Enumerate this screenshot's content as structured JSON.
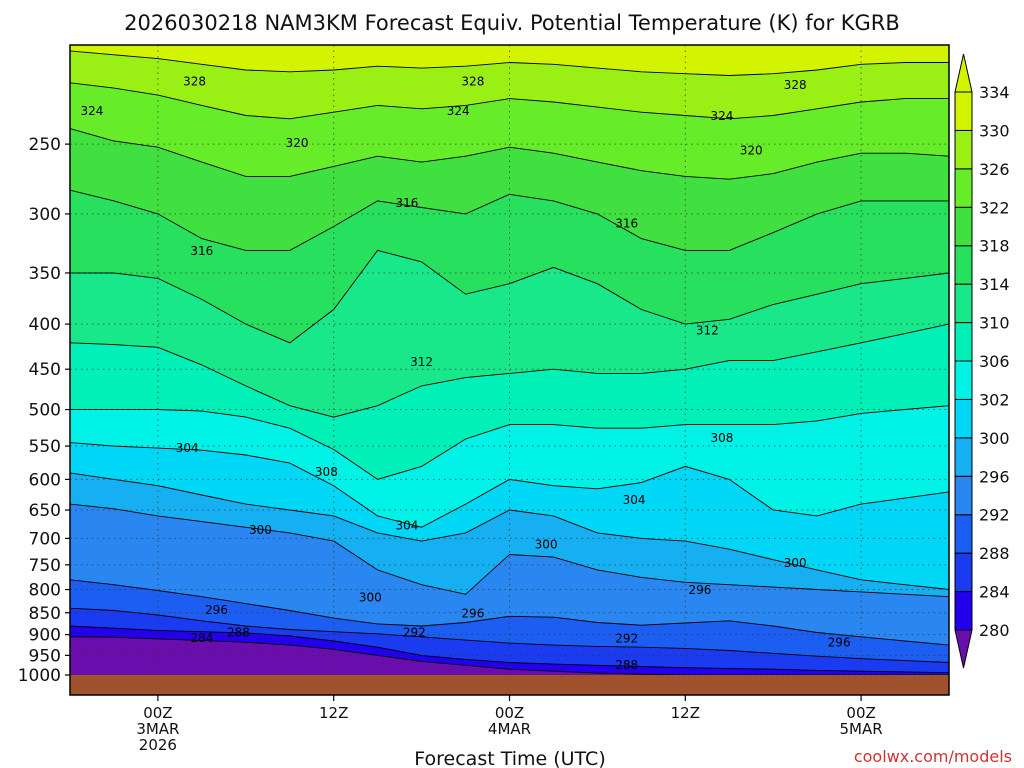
{
  "title": "2026030218 NAM3KM Forecast Equiv. Potential Temperature (K) for KGRB",
  "credit": "coolwx.com/models",
  "chart_data": {
    "type": "heatmap",
    "title": "2026030218 NAM3KM Forecast Equiv. Potential Temperature (K) for KGRB",
    "xlabel": "Forecast Time (UTC)",
    "ylabel": "",
    "y_axis": {
      "unit": "hPa",
      "scale": "log-pressure (inverted)",
      "range": [
        1000,
        200
      ],
      "ticks": [
        250,
        300,
        350,
        400,
        450,
        500,
        550,
        600,
        650,
        700,
        750,
        800,
        850,
        900,
        950,
        1000
      ]
    },
    "x_axis": {
      "range_hours_from_00Z_3MAR": [
        -6,
        54
      ],
      "ticks": [
        {
          "hour": 0,
          "lines": [
            "00Z",
            "3MAR",
            "2026"
          ]
        },
        {
          "hour": 12,
          "lines": [
            "12Z"
          ]
        },
        {
          "hour": 24,
          "lines": [
            "00Z",
            "4MAR"
          ]
        },
        {
          "hour": 36,
          "lines": [
            "12Z"
          ]
        },
        {
          "hour": 48,
          "lines": [
            "00Z",
            "5MAR"
          ]
        }
      ]
    },
    "grid": true,
    "colorbar": {
      "placement": "right",
      "levels": [
        280,
        284,
        288,
        292,
        296,
        300,
        302,
        306,
        310,
        314,
        318,
        322,
        326,
        330,
        334
      ],
      "colors": [
        "#6a0dad",
        "#2200ee",
        "#1a3bef",
        "#1d5ef2",
        "#2a86f0",
        "#16b0f2",
        "#00d6f6",
        "#00f2e6",
        "#00f0b8",
        "#18e88a",
        "#26e05e",
        "#40e040",
        "#66ec28",
        "#9af014",
        "#d2f400"
      ]
    },
    "ground_color": "#a0522d",
    "contour_labels": [
      {
        "text": "328",
        "hour": 2.5,
        "p": 212
      },
      {
        "text": "328",
        "hour": 21.5,
        "p": 212
      },
      {
        "text": "328",
        "hour": 43.5,
        "p": 214
      },
      {
        "text": "324",
        "hour": -4.5,
        "p": 229
      },
      {
        "text": "324",
        "hour": 20.5,
        "p": 229
      },
      {
        "text": "324",
        "hour": 38.5,
        "p": 232
      },
      {
        "text": "320",
        "hour": 9.5,
        "p": 249
      },
      {
        "text": "320",
        "hour": 40.5,
        "p": 254
      },
      {
        "text": "316",
        "hour": 17,
        "p": 291
      },
      {
        "text": "316",
        "hour": 32,
        "p": 307
      },
      {
        "text": "316",
        "hour": 3,
        "p": 330
      },
      {
        "text": "312",
        "hour": 37.5,
        "p": 406
      },
      {
        "text": "312",
        "hour": 18,
        "p": 441
      },
      {
        "text": "308",
        "hour": 38.5,
        "p": 538
      },
      {
        "text": "308",
        "hour": 11.5,
        "p": 588
      },
      {
        "text": "304",
        "hour": 2,
        "p": 552
      },
      {
        "text": "304",
        "hour": 32.5,
        "p": 632
      },
      {
        "text": "304",
        "hour": 17,
        "p": 676
      },
      {
        "text": "300",
        "hour": 7,
        "p": 684
      },
      {
        "text": "300",
        "hour": 26.5,
        "p": 710
      },
      {
        "text": "300",
        "hour": 43.5,
        "p": 745
      },
      {
        "text": "300",
        "hour": 14.5,
        "p": 816
      },
      {
        "text": "296",
        "hour": 4,
        "p": 843
      },
      {
        "text": "296",
        "hour": 37,
        "p": 800
      },
      {
        "text": "296",
        "hour": 21.5,
        "p": 850
      },
      {
        "text": "292",
        "hour": 17.5,
        "p": 894
      },
      {
        "text": "292",
        "hour": 32,
        "p": 908
      },
      {
        "text": "296",
        "hour": 46.5,
        "p": 918
      },
      {
        "text": "288",
        "hour": 5.5,
        "p": 894
      },
      {
        "text": "284",
        "hour": 3,
        "p": 907
      },
      {
        "text": "288",
        "hour": 32,
        "p": 973
      }
    ]
  }
}
